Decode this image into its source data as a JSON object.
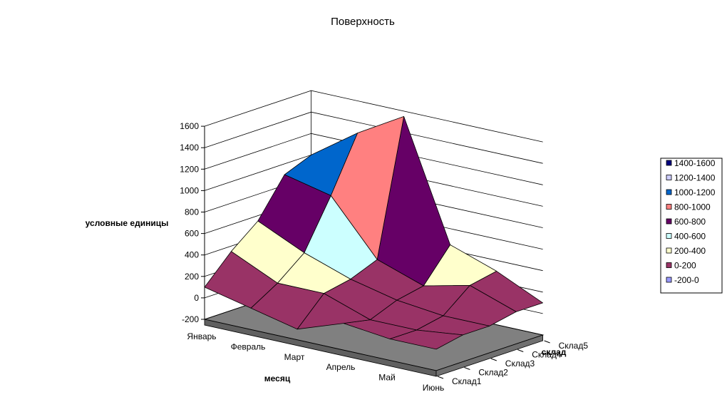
{
  "chart_data": {
    "type": "surface",
    "title": "Поверхность",
    "xlabel": "месяц",
    "ylabel": "склад",
    "zlabel": "условные единицы",
    "x_categories": [
      "Январь",
      "Февраль",
      "Март",
      "Апрель",
      "Май",
      "Июнь"
    ],
    "y_categories": [
      "Склад1",
      "Склад2",
      "Склад3",
      "Склад4",
      "Склад5"
    ],
    "zlim": [
      -200,
      1600
    ],
    "z_ticks": [
      "-200",
      "0",
      "200",
      "400",
      "600",
      "800",
      "1000",
      "1200",
      "1400",
      "1600"
    ],
    "series": [
      {
        "name": "Склад1",
        "values": [
          100,
          0,
          -100,
          50,
          0,
          0
        ]
      },
      {
        "name": "Склад2",
        "values": [
          350,
          150,
          150,
          0,
          0,
          50
        ]
      },
      {
        "name": "Склад3",
        "values": [
          550,
          350,
          200,
          100,
          50,
          50
        ]
      },
      {
        "name": "Склад4",
        "values": [
          900,
          800,
          300,
          150,
          250,
          100
        ]
      },
      {
        "name": "Склад5",
        "values": [
          1000,
          1300,
          1550,
          450,
          300,
          100
        ]
      }
    ],
    "legend": {
      "position": "right",
      "entries": [
        {
          "label": "1400-1600",
          "color": "#000080"
        },
        {
          "label": "1200-1400",
          "color": "#ccccff"
        },
        {
          "label": "1000-1200",
          "color": "#0066cc"
        },
        {
          "label": "800-1000",
          "color": "#ff8080"
        },
        {
          "label": "600-800",
          "color": "#660066"
        },
        {
          "label": "400-600",
          "color": "#ccffff"
        },
        {
          "label": "200-400",
          "color": "#ffffcc"
        },
        {
          "label": "0-200",
          "color": "#993366"
        },
        {
          "label": "-200-0",
          "color": "#9999ff"
        }
      ]
    },
    "floor_color": "#808080",
    "grid": true
  }
}
